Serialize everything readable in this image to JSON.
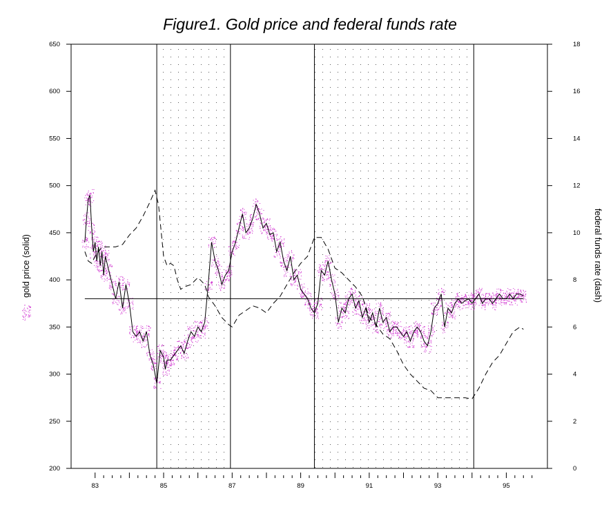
{
  "chart_data": {
    "type": "line",
    "title": "Figure1. Gold price and federal funds rate",
    "ylabel": "gold price (solid)",
    "y2label": "federal funds rate (dash)",
    "xlim": [
      1982.3,
      1996.2
    ],
    "ylim": [
      200,
      650
    ],
    "y2lim": [
      0,
      18
    ],
    "x_tick_labels": [
      "83",
      "85",
      "87",
      "89",
      "91",
      "93",
      "95"
    ],
    "x_tick_values": [
      1983,
      1985,
      1987,
      1989,
      1991,
      1993,
      1995
    ],
    "y_ticks": [
      200,
      250,
      300,
      350,
      400,
      450,
      500,
      550,
      600,
      650
    ],
    "y2_ticks": [
      0,
      2,
      4,
      6,
      8,
      10,
      12,
      14,
      16,
      18
    ],
    "reference_line": {
      "y": 380,
      "x_start": 1982.7,
      "x_end": 1995.5
    },
    "shaded_periods": [
      [
        1984.8,
        1986.95
      ],
      [
        1989.4,
        1994.05
      ]
    ],
    "colors": {
      "solid": "#000000",
      "dashed": "#000000",
      "scatter": "#cc22cc",
      "axis": "#000000"
    },
    "series": [
      {
        "name": "gold price (solid)",
        "axis": "left",
        "style": "solid",
        "x": [
          1982.7,
          1982.75,
          1982.8,
          1982.85,
          1982.9,
          1982.95,
          1983.0,
          1983.05,
          1983.1,
          1983.15,
          1983.2,
          1983.25,
          1983.3,
          1983.4,
          1983.5,
          1983.6,
          1983.7,
          1983.8,
          1983.9,
          1984.0,
          1984.1,
          1984.2,
          1984.3,
          1984.4,
          1984.5,
          1984.6,
          1984.7,
          1984.8,
          1984.9,
          1985.0,
          1985.05,
          1985.1,
          1985.2,
          1985.3,
          1985.4,
          1985.5,
          1985.6,
          1985.7,
          1985.8,
          1985.9,
          1986.0,
          1986.1,
          1986.2,
          1986.3,
          1986.4,
          1986.5,
          1986.6,
          1986.7,
          1986.8,
          1986.9,
          1987.0,
          1987.1,
          1987.2,
          1987.3,
          1987.4,
          1987.5,
          1987.6,
          1987.7,
          1987.8,
          1987.9,
          1988.0,
          1988.1,
          1988.2,
          1988.3,
          1988.4,
          1988.5,
          1988.6,
          1988.7,
          1988.8,
          1988.9,
          1989.0,
          1989.1,
          1989.2,
          1989.3,
          1989.4,
          1989.5,
          1989.6,
          1989.7,
          1989.8,
          1989.9,
          1990.0,
          1990.1,
          1990.2,
          1990.3,
          1990.4,
          1990.5,
          1990.6,
          1990.7,
          1990.8,
          1990.9,
          1991.0,
          1991.1,
          1991.2,
          1991.3,
          1991.4,
          1991.5,
          1991.6,
          1991.7,
          1991.8,
          1991.9,
          1992.0,
          1992.1,
          1992.2,
          1992.3,
          1992.4,
          1992.5,
          1992.6,
          1992.7,
          1992.8,
          1992.9,
          1993.0,
          1993.1,
          1993.2,
          1993.3,
          1993.4,
          1993.5,
          1993.6,
          1993.7,
          1993.8,
          1993.9,
          1994.0,
          1994.1,
          1994.2,
          1994.3,
          1994.4,
          1994.5,
          1994.6,
          1994.7,
          1994.8,
          1994.9,
          1995.0,
          1995.1,
          1995.2,
          1995.3,
          1995.4,
          1995.5
        ],
        "y": [
          440,
          465,
          485,
          490,
          455,
          430,
          440,
          420,
          435,
          415,
          430,
          405,
          425,
          410,
          395,
          380,
          398,
          370,
          395,
          375,
          345,
          340,
          345,
          335,
          345,
          320,
          310,
          290,
          325,
          318,
          305,
          315,
          315,
          320,
          325,
          330,
          322,
          335,
          345,
          340,
          350,
          345,
          355,
          395,
          440,
          420,
          410,
          395,
          405,
          410,
          430,
          440,
          455,
          470,
          450,
          455,
          465,
          480,
          470,
          455,
          460,
          448,
          450,
          430,
          440,
          420,
          410,
          425,
          400,
          405,
          390,
          385,
          380,
          370,
          365,
          375,
          410,
          405,
          420,
          400,
          385,
          355,
          370,
          365,
          380,
          385,
          370,
          378,
          360,
          370,
          355,
          365,
          350,
          370,
          355,
          360,
          345,
          350,
          350,
          345,
          340,
          345,
          335,
          345,
          350,
          345,
          335,
          330,
          345,
          370,
          375,
          385,
          350,
          370,
          365,
          375,
          380,
          375,
          378,
          380,
          375,
          380,
          385,
          375,
          380,
          380,
          375,
          380,
          385,
          380,
          380,
          385,
          380,
          385,
          385,
          383
        ]
      },
      {
        "name": "federal funds rate (dash)",
        "axis": "right",
        "style": "dashed",
        "x": [
          1982.7,
          1982.8,
          1982.9,
          1983.0,
          1983.2,
          1983.4,
          1983.6,
          1983.8,
          1984.0,
          1984.2,
          1984.4,
          1984.6,
          1984.75,
          1984.85,
          1985.0,
          1985.1,
          1985.2,
          1985.3,
          1985.4,
          1985.5,
          1985.6,
          1985.8,
          1986.0,
          1986.2,
          1986.3,
          1986.5,
          1986.7,
          1986.9,
          1987.0,
          1987.2,
          1987.4,
          1987.6,
          1987.8,
          1988.0,
          1988.2,
          1988.4,
          1988.6,
          1988.8,
          1989.0,
          1989.2,
          1989.4,
          1989.6,
          1989.8,
          1990.0,
          1990.2,
          1990.4,
          1990.6,
          1990.8,
          1991.0,
          1991.2,
          1991.4,
          1991.6,
          1991.8,
          1992.0,
          1992.2,
          1992.4,
          1992.6,
          1992.8,
          1993.0,
          1993.2,
          1993.4,
          1993.6,
          1993.8,
          1994.0,
          1994.2,
          1994.4,
          1994.6,
          1994.8,
          1995.0,
          1995.2,
          1995.4,
          1995.5
        ],
        "y": [
          9.2,
          8.8,
          8.7,
          9.0,
          9.4,
          9.4,
          9.4,
          9.5,
          9.9,
          10.2,
          10.7,
          11.3,
          11.8,
          11.2,
          9.0,
          8.6,
          8.7,
          8.6,
          8.0,
          7.6,
          7.7,
          7.8,
          8.1,
          7.8,
          7.3,
          6.9,
          6.4,
          6.1,
          6.0,
          6.5,
          6.7,
          6.9,
          6.8,
          6.6,
          7.0,
          7.3,
          7.8,
          8.3,
          8.7,
          9.0,
          9.8,
          9.8,
          9.3,
          8.5,
          8.3,
          8.0,
          7.7,
          7.3,
          6.4,
          6.1,
          5.7,
          5.5,
          5.0,
          4.4,
          4.0,
          3.7,
          3.4,
          3.3,
          3.0,
          3.0,
          3.0,
          3.0,
          3.0,
          2.95,
          3.4,
          4.0,
          4.5,
          4.8,
          5.3,
          5.8,
          6.0,
          5.9
        ]
      }
    ]
  }
}
